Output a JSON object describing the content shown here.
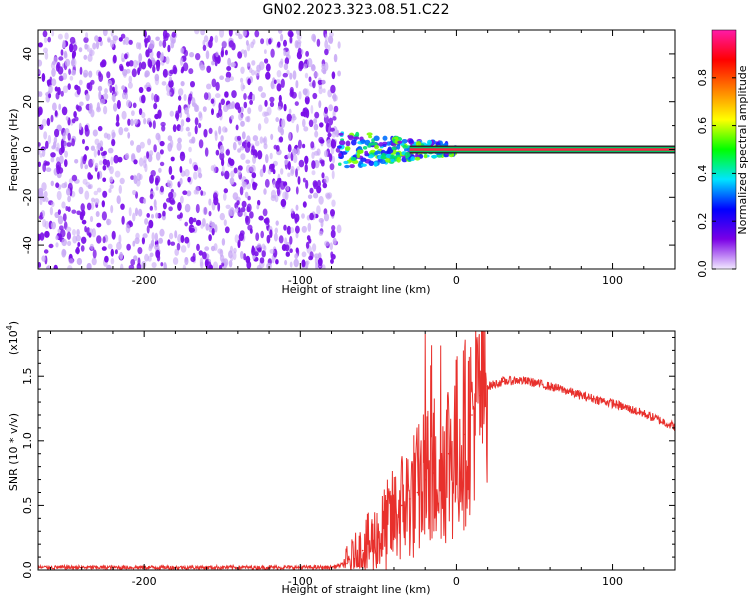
{
  "title": "GN02.2023.323.08.51.C22",
  "chart_data": [
    {
      "type": "heatmap",
      "xlabel": "Height of straight line (km)",
      "ylabel": "Frequency (Hz)",
      "xlim": [
        -268,
        140
      ],
      "ylim": [
        -50,
        50
      ],
      "x_ticks": [
        -200,
        -100,
        0,
        100
      ],
      "x_tick_labels": [
        "-200",
        "-100",
        "0",
        "100"
      ],
      "y_ticks": [
        -40,
        -20,
        0,
        20,
        40
      ],
      "y_tick_labels": [
        "-40",
        "-20",
        "0",
        "20",
        "40"
      ],
      "colorbar": {
        "label": "Normalized spectral amplitude",
        "range": [
          0,
          1
        ],
        "ticks": [
          0,
          0.2,
          0.4,
          0.6,
          0.8
        ],
        "tick_labels": [
          "0.0",
          "0.2",
          "0.4",
          "0.6",
          "0.8"
        ],
        "colors": [
          "#f2eaff",
          "#7a00e6",
          "#0000ff",
          "#00e5ff",
          "#00ff00",
          "#ffff00",
          "#ff8000",
          "#ff0000",
          "#ff1aa8"
        ]
      },
      "regions": [
        {
          "name": "noise",
          "x_range": [
            -268,
            -75
          ],
          "f_range": [
            -50,
            50
          ],
          "amplitude": 0.05
        },
        {
          "name": "onset",
          "x_range": [
            -75,
            -30
          ],
          "f_range": [
            -8,
            8
          ],
          "amplitude": 0.35
        },
        {
          "name": "tone",
          "x_range": [
            -30,
            140
          ],
          "f_center": 0,
          "amplitude": 0.95
        }
      ]
    },
    {
      "type": "line",
      "xlabel": "Height of straight line (km)",
      "ylabel": "SNR (10 * v/v)",
      "y_multiplier": "(x10",
      "y_multiplier_exp": "4",
      "y_multiplier_close": ")",
      "xlim": [
        -268,
        140
      ],
      "ylim": [
        0,
        1.85
      ],
      "x_ticks": [
        -200,
        -100,
        0,
        100
      ],
      "x_tick_labels": [
        "-200",
        "-100",
        "0",
        "100"
      ],
      "y_ticks": [
        0,
        0.5,
        1.0,
        1.5
      ],
      "y_tick_labels": [
        "0.0",
        "0.5",
        "1.0",
        "1.5"
      ],
      "series": [
        {
          "color": "#e8302c",
          "x": [
            -268,
            -250,
            -200,
            -150,
            -100,
            -80,
            -70,
            -60,
            -50,
            -40,
            -35,
            -30,
            -25,
            -20,
            -15,
            -10,
            -5,
            0,
            5,
            10,
            15,
            20,
            30,
            40,
            50,
            60,
            70,
            80,
            90,
            100,
            110,
            120,
            130,
            140
          ],
          "y": [
            0.02,
            0.02,
            0.02,
            0.02,
            0.02,
            0.02,
            0.05,
            0.15,
            0.25,
            0.4,
            0.5,
            0.55,
            0.6,
            0.7,
            0.75,
            0.85,
            0.9,
            0.95,
            1.05,
            1.2,
            1.35,
            1.42,
            1.46,
            1.47,
            1.45,
            1.42,
            1.39,
            1.35,
            1.32,
            1.29,
            1.25,
            1.21,
            1.16,
            1.11
          ]
        }
      ]
    }
  ]
}
